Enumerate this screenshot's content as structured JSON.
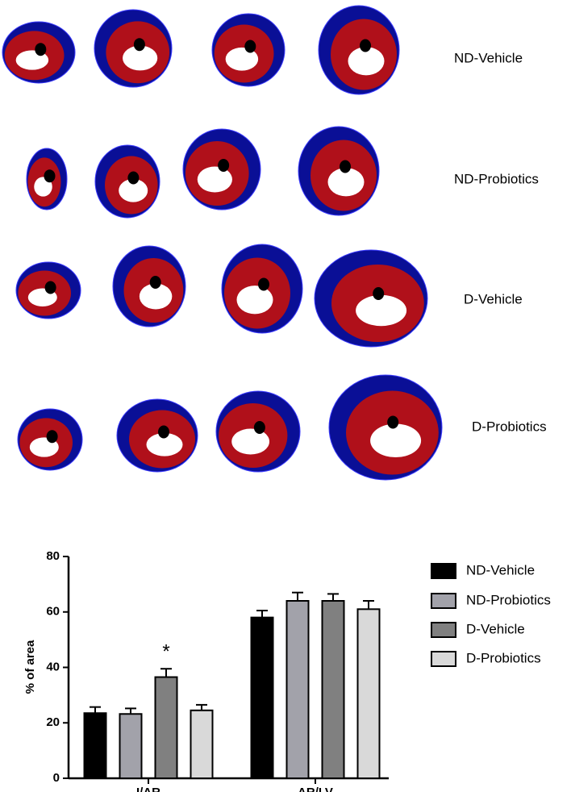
{
  "panel_labels": [
    "ND-Vehicle",
    "ND-Probiotics",
    "D-Vehicle",
    "D-Probiotics"
  ],
  "chart_data": {
    "type": "bar",
    "y_label": "% of area",
    "categories": [
      "I/AR",
      "AR/LV"
    ],
    "series": [
      {
        "name": "ND-Vehicle",
        "color": "#000000",
        "values": [
          23.5,
          58
        ],
        "errors": [
          2.2,
          2.5
        ]
      },
      {
        "name": "ND-Probiotics",
        "color": "#a2a2aa",
        "values": [
          23.2,
          64
        ],
        "errors": [
          2,
          3
        ]
      },
      {
        "name": "D-Vehicle",
        "color": "#808080",
        "values": [
          36.5,
          64
        ],
        "errors": [
          3,
          2.5
        ]
      },
      {
        "name": "D-Probiotics",
        "color": "#d9d9d9",
        "values": [
          24.5,
          61
        ],
        "errors": [
          2,
          3
        ]
      }
    ],
    "ylim": [
      0,
      80
    ],
    "yticks": [
      0,
      20,
      40,
      60,
      80
    ],
    "annotation": "*",
    "legend": "right"
  }
}
